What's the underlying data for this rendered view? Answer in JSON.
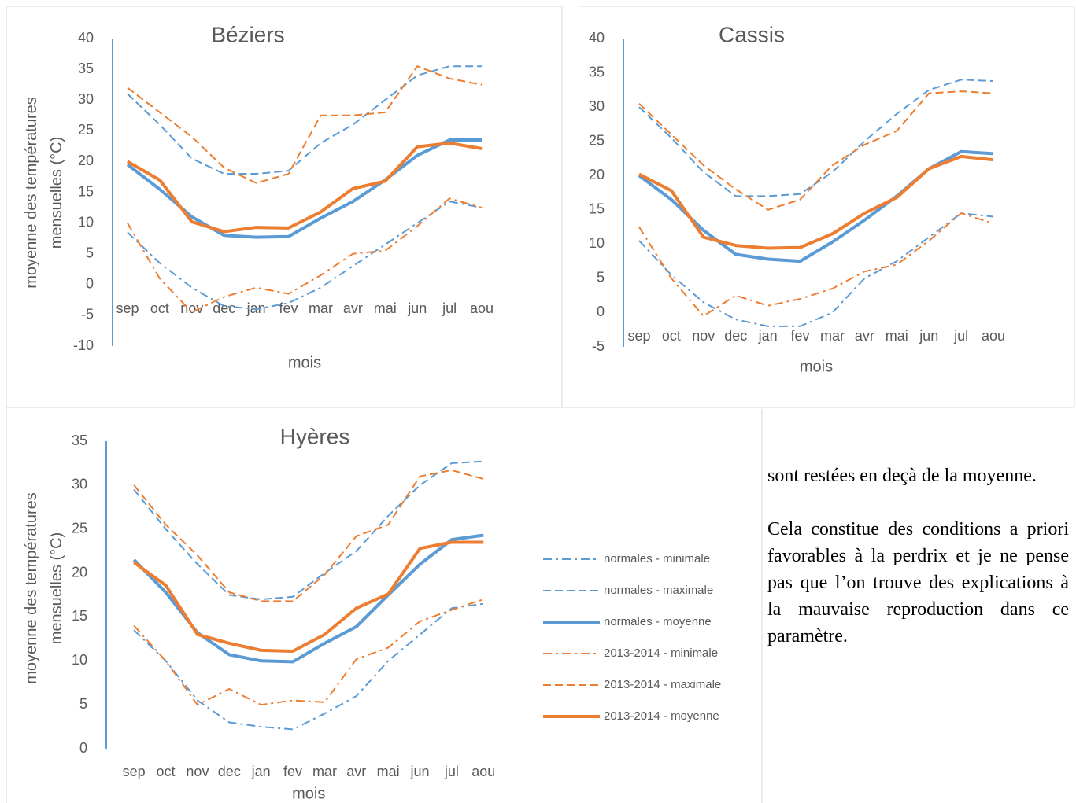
{
  "chart_data": [
    {
      "type": "line",
      "title": "Béziers",
      "x_label": "mois",
      "y_label": "moyenne des températures mensuelles (°C)",
      "categories": [
        "sep",
        "oct",
        "nov",
        "dec",
        "jan",
        "fev",
        "mar",
        "avr",
        "mai",
        "jun",
        "jul",
        "aou"
      ],
      "ylim": [
        -10,
        40
      ],
      "yticks": [
        -10,
        -5,
        0,
        5,
        10,
        15,
        20,
        25,
        30,
        35,
        40
      ],
      "series": [
        {
          "color": "#5b9bd5",
          "dash": "dashdot",
          "values": [
            8.5,
            3.5,
            -0.5,
            -3.5,
            -4,
            -3,
            -0.5,
            3,
            6.5,
            10,
            13.5,
            12.5
          ]
        },
        {
          "color": "#5b9bd5",
          "dash": "dash",
          "values": [
            31,
            26,
            20.5,
            18,
            18,
            18.5,
            23,
            26,
            30,
            34,
            35.5,
            35.5
          ]
        },
        {
          "color": "#5b9bd5",
          "dash": "solid",
          "values": [
            19.5,
            15.5,
            11,
            8,
            7.7,
            7.8,
            10.8,
            13.5,
            17,
            21,
            23.5,
            23.5
          ]
        },
        {
          "color": "#ed7d31",
          "dash": "dashdot",
          "values": [
            10,
            1,
            -4.5,
            -2,
            -0.5,
            -1.5,
            1.5,
            5,
            5.5,
            9.5,
            14,
            12.5
          ]
        },
        {
          "color": "#ed7d31",
          "dash": "dash",
          "values": [
            32,
            28,
            24,
            19,
            16.5,
            18,
            27.5,
            27.5,
            28,
            35.5,
            33.5,
            32.5
          ]
        },
        {
          "color": "#ed7d31",
          "dash": "solid",
          "values": [
            20,
            17,
            10.2,
            8.6,
            9.3,
            9.2,
            11.8,
            15.6,
            16.8,
            22.4,
            23,
            22.1
          ]
        }
      ]
    },
    {
      "type": "line",
      "title": "Cassis",
      "x_label": "mois",
      "categories": [
        "sep",
        "oct",
        "nov",
        "dec",
        "jan",
        "fev",
        "mar",
        "avr",
        "mai",
        "jun",
        "jul",
        "aou"
      ],
      "ylim": [
        -5,
        40
      ],
      "yticks": [
        -5,
        0,
        5,
        10,
        15,
        20,
        25,
        30,
        35,
        40
      ],
      "series": [
        {
          "color": "#5b9bd5",
          "dash": "dashdot",
          "values": [
            10.5,
            5.5,
            1.5,
            -1,
            -2,
            -2,
            0,
            5,
            7.5,
            11,
            14.5,
            14
          ]
        },
        {
          "color": "#5b9bd5",
          "dash": "dash",
          "values": [
            30,
            25.5,
            20.5,
            17,
            17,
            17.3,
            20.5,
            25,
            29,
            32.5,
            34,
            33.8
          ]
        },
        {
          "color": "#5b9bd5",
          "dash": "solid",
          "values": [
            20,
            16.5,
            12,
            8.5,
            7.8,
            7.5,
            10.3,
            13.5,
            17,
            21,
            23.5,
            23.2
          ]
        },
        {
          "color": "#ed7d31",
          "dash": "dashdot",
          "values": [
            12.5,
            5,
            -0.5,
            2.5,
            1,
            2,
            3.5,
            6,
            7,
            10.5,
            14.5,
            13
          ]
        },
        {
          "color": "#ed7d31",
          "dash": "dash",
          "values": [
            30.5,
            26,
            21.5,
            18,
            15,
            16.5,
            21.5,
            24.5,
            26.5,
            32,
            32.3,
            32
          ]
        },
        {
          "color": "#ed7d31",
          "dash": "solid",
          "values": [
            20.2,
            17.8,
            11,
            9.8,
            9.4,
            9.5,
            11.5,
            14.5,
            16.8,
            21,
            22.8,
            22.3
          ]
        }
      ]
    },
    {
      "type": "line",
      "title": "Hyères",
      "x_label": "mois",
      "y_label": "moyenne des températures mensuelles (°C)",
      "categories": [
        "sep",
        "oct",
        "nov",
        "dec",
        "jan",
        "fev",
        "mar",
        "avr",
        "mai",
        "jun",
        "jul",
        "aou"
      ],
      "ylim": [
        0,
        35
      ],
      "yticks": [
        0,
        5,
        10,
        15,
        20,
        25,
        30,
        35
      ],
      "legend": "right",
      "series": [
        {
          "name": "normales - minimale",
          "color": "#5b9bd5",
          "dash": "dashdot",
          "values": [
            13.5,
            10,
            5.5,
            3,
            2.5,
            2.2,
            4,
            6,
            10,
            13,
            16,
            16.5
          ]
        },
        {
          "name": "normales - maximale",
          "color": "#5b9bd5",
          "dash": "dash",
          "values": [
            29.5,
            25,
            21,
            17.5,
            17,
            17.3,
            20,
            22.5,
            26.5,
            30,
            32.5,
            32.7
          ]
        },
        {
          "name": "normales - moyenne",
          "color": "#5b9bd5",
          "dash": "solid",
          "values": [
            21.5,
            17.8,
            13.2,
            10.7,
            10,
            9.9,
            12,
            13.9,
            17.5,
            21,
            23.8,
            24.3
          ]
        },
        {
          "name": "2013-2014 - minimale",
          "color": "#ed7d31",
          "dash": "dashdot",
          "values": [
            14,
            10,
            5,
            6.8,
            5,
            5.5,
            5.3,
            10.2,
            11.5,
            14.5,
            15.8,
            17
          ]
        },
        {
          "name": "2013-2014 - maximale",
          "color": "#ed7d31",
          "dash": "dash",
          "values": [
            30,
            25.5,
            22,
            17.8,
            16.8,
            16.8,
            19.8,
            24.2,
            25.5,
            31,
            31.7,
            30.7
          ]
        },
        {
          "name": "2013-2014 - moyenne",
          "color": "#ed7d31",
          "dash": "solid",
          "values": [
            21.2,
            18.6,
            13,
            12,
            11.2,
            11.1,
            13,
            16,
            17.6,
            22.8,
            23.5,
            23.5
          ]
        }
      ]
    }
  ],
  "text": {
    "paragraphs": [
      "sont restées en deçà de la moyenne.",
      "Cela constitue des conditions a priori favorables à la perdrix et je ne pense pas que l’on trouve des explications à la mauvaise reproduction dans ce paramètre."
    ]
  }
}
